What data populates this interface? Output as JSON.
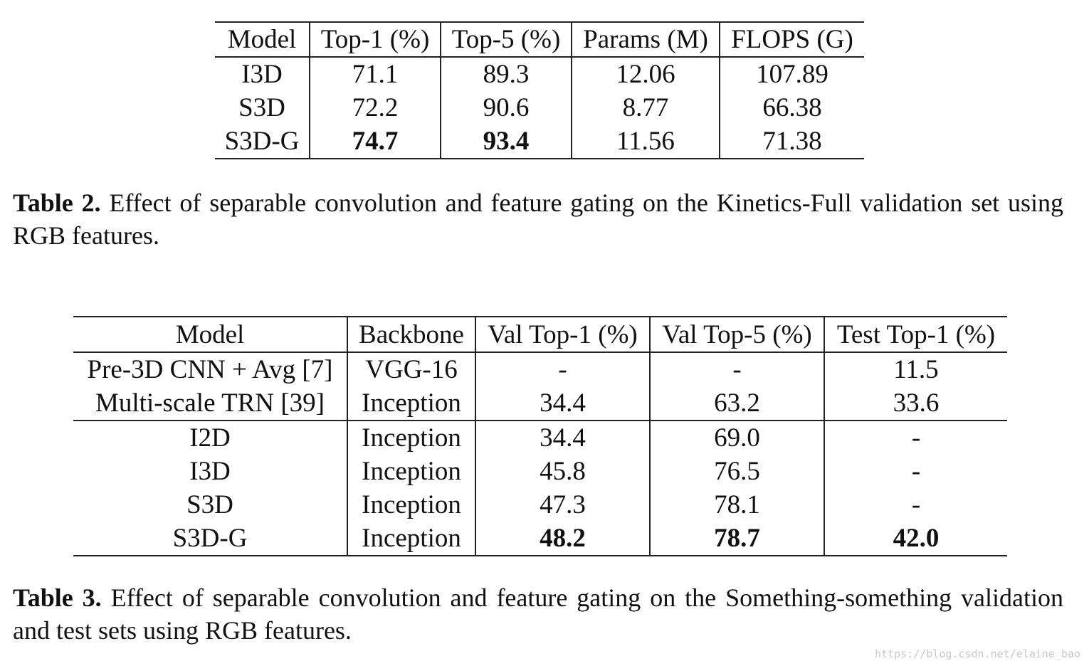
{
  "table2": {
    "headers": [
      "Model",
      "Top-1 (%)",
      "Top-5 (%)",
      "Params (M)",
      "FLOPS (G)"
    ],
    "rows": [
      [
        "I3D",
        "71.1",
        "89.3",
        "12.06",
        "107.89"
      ],
      [
        "S3D",
        "72.2",
        "90.6",
        "8.77",
        "66.38"
      ],
      [
        "S3D-G",
        "74.7",
        "93.4",
        "11.56",
        "71.38"
      ]
    ],
    "caption_label": "Table 2.",
    "caption_text": " Effect of separable convolution and feature gating on the Kinetics-Full validation set using RGB features."
  },
  "table3": {
    "headers": [
      "Model",
      "Backbone",
      "Val Top-1 (%)",
      "Val Top-5 (%)",
      "Test Top-1 (%)"
    ],
    "rows": [
      [
        "Pre-3D CNN + Avg [7]",
        "VGG-16",
        "-",
        "-",
        "11.5"
      ],
      [
        "Multi-scale TRN [39]",
        "Inception",
        "34.4",
        "63.2",
        "33.6"
      ],
      [
        "I2D",
        "Inception",
        "34.4",
        "69.0",
        "-"
      ],
      [
        "I3D",
        "Inception",
        "45.8",
        "76.5",
        "-"
      ],
      [
        "S3D",
        "Inception",
        "47.3",
        "78.1",
        "-"
      ],
      [
        "S3D-G",
        "Inception",
        "48.2",
        "78.7",
        "42.0"
      ]
    ],
    "caption_label": "Table 3.",
    "caption_text": " Effect of separable convolution and feature gating on the Something-something validation and test sets using RGB features."
  },
  "watermark": "https://blog.csdn.net/elaine_bao"
}
